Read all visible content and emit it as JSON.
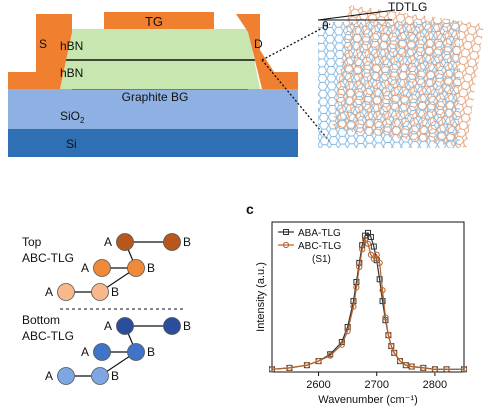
{
  "device": {
    "top_gate": "TG",
    "source": "S",
    "drain": "D",
    "hbn_top": "hBN",
    "hbn_bottom": "hBN",
    "back_gate": "Graphite BG",
    "sio2": "SiO",
    "sio2_sub": "2",
    "si": "Si",
    "colors": {
      "gold": "#f07f2f",
      "hbn": "#c8e6b0",
      "graphite": "#7a7a7a",
      "sio2": "#8fb0e2",
      "si": "#2f6fb3"
    }
  },
  "moire": {
    "title": "TDTLG",
    "angle": "θ",
    "colors": {
      "top_lattice": "#e2a07a",
      "bottom_lattice": "#7fb7e2"
    }
  },
  "panel_c_label": "c",
  "stacking": {
    "top_label_line1": "Top",
    "top_label_line2": "ABC-TLG",
    "bottom_label_line1": "Bottom",
    "bottom_label_line2": "ABC-TLG",
    "site_a": "A",
    "site_b": "B",
    "top_colors": [
      "#b8561b",
      "#ee8a3a",
      "#f7b98c"
    ],
    "bottom_colors": [
      "#2a4e9c",
      "#3f74c8",
      "#7ea6e2"
    ]
  },
  "chart_data": {
    "type": "line",
    "xlabel": "Wavenumber (cm⁻¹)",
    "ylabel": "Intensity (a.u.)",
    "xlim": [
      2520,
      2850
    ],
    "ylim": [
      0,
      1.1
    ],
    "xticks": [
      2600,
      2700,
      2800
    ],
    "series": [
      {
        "name": "ABA-TLG",
        "marker": "square",
        "color": "#333333",
        "x": [
          2520,
          2550,
          2580,
          2600,
          2620,
          2640,
          2650,
          2660,
          2665,
          2670,
          2675,
          2680,
          2685,
          2690,
          2695,
          2700,
          2705,
          2710,
          2715,
          2720,
          2725,
          2730,
          2740,
          2750,
          2760,
          2780,
          2800,
          2820,
          2850
        ],
        "y": [
          0.02,
          0.03,
          0.05,
          0.08,
          0.13,
          0.22,
          0.33,
          0.52,
          0.66,
          0.8,
          0.93,
          1.0,
          1.02,
          0.99,
          0.92,
          0.82,
          0.68,
          0.52,
          0.38,
          0.27,
          0.19,
          0.14,
          0.08,
          0.05,
          0.04,
          0.03,
          0.02,
          0.02,
          0.02
        ]
      },
      {
        "name": "ABC-TLG",
        "name_line2": "(S1)",
        "marker": "circle",
        "color": "#b4632e",
        "x": [
          2520,
          2550,
          2580,
          2600,
          2620,
          2640,
          2650,
          2660,
          2665,
          2670,
          2675,
          2680,
          2685,
          2690,
          2695,
          2700,
          2705,
          2710,
          2715,
          2720,
          2725,
          2730,
          2740,
          2750,
          2760,
          2780,
          2800,
          2820,
          2850
        ],
        "y": [
          0.02,
          0.03,
          0.05,
          0.08,
          0.12,
          0.2,
          0.3,
          0.48,
          0.62,
          0.77,
          0.9,
          0.97,
          0.94,
          0.86,
          0.83,
          0.86,
          0.8,
          0.6,
          0.4,
          0.27,
          0.19,
          0.14,
          0.08,
          0.05,
          0.04,
          0.03,
          0.02,
          0.02,
          0.02
        ]
      }
    ]
  }
}
